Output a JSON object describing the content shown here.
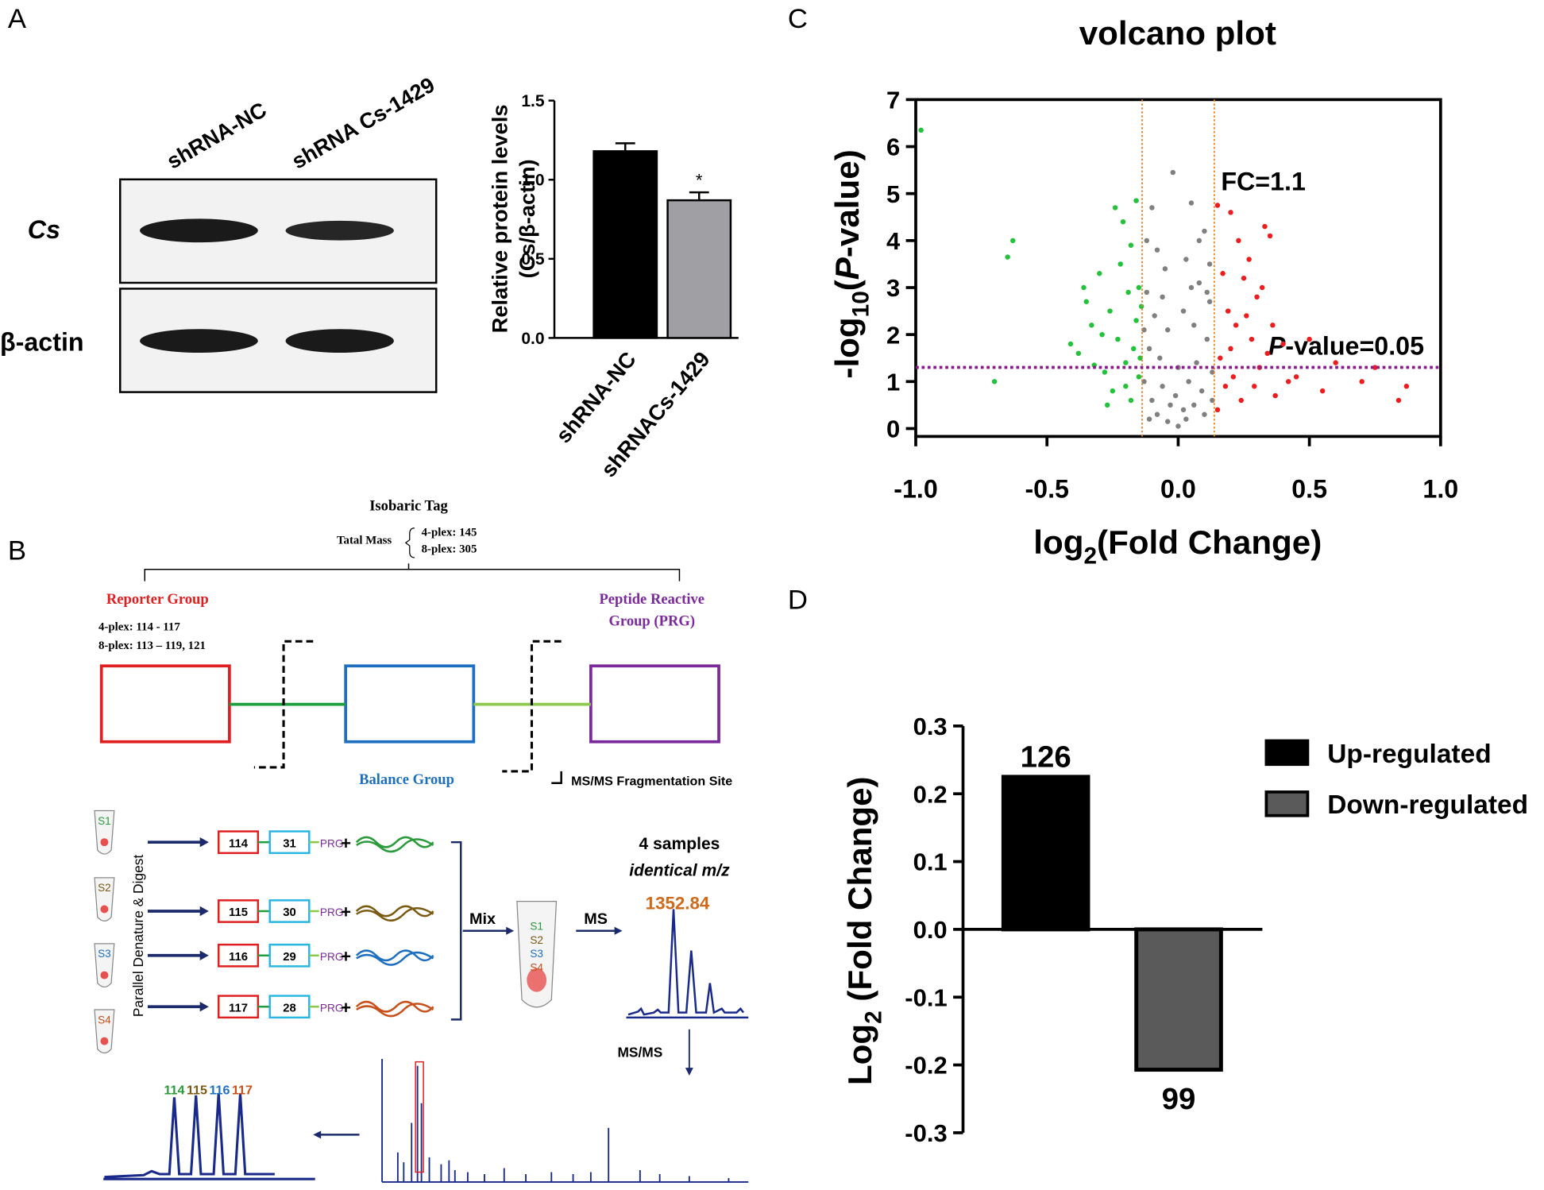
{
  "panel_labels": [
    "A",
    "B",
    "C",
    "D"
  ],
  "blot": {
    "lanes": [
      "shRNA-NC",
      "shRNA Cs-1429"
    ],
    "rows": [
      "Cs",
      "β-actin"
    ]
  },
  "diagram": {
    "title": "Isobaric Tag",
    "mass_label": "Tatal Mass",
    "mass_values": [
      "4-plex: 145",
      "8-plex: 305"
    ],
    "reporter": "Reporter Group",
    "reporter_values": [
      "4-plex: 114 - 117",
      "8-plex: 113 – 119, 121"
    ],
    "prg": [
      "Peptide Reactive",
      "Group (PRG)"
    ],
    "balance": "Balance Group",
    "fragmentation": "MS/MS Fragmentation Site",
    "digest": "Parallel Denature & Digest",
    "samples": [
      "S1",
      "S2",
      "S3",
      "S4"
    ],
    "reporter_tags": [
      "114",
      "115",
      "116",
      "117"
    ],
    "balance_tags": [
      "31",
      "30",
      "29",
      "28"
    ],
    "prg_tag": "PRG",
    "plus": "+",
    "mix": "Mix",
    "ms": "MS",
    "four_samples": "4 samples",
    "identical": "identical m/z",
    "peak": "1352.84",
    "msms": "MS/MS",
    "reporter_peaks": [
      "114",
      "115",
      "116",
      "117"
    ]
  },
  "chart_data": [
    {
      "type": "bar",
      "ylabel": [
        "Relative protein levels",
        "(Cs/β-actin)"
      ],
      "categories": [
        "shRNA-NC",
        "shRNACs-1429"
      ],
      "values": [
        1.18,
        0.87
      ],
      "errors": [
        0.05,
        0.05
      ],
      "colors": [
        "#000000",
        "#a0a0a4"
      ],
      "annotation": "*",
      "ylim": [
        0,
        1.5
      ],
      "yticks": [
        {
          "value": 0,
          "label": "0.0"
        },
        0.5,
        {
          "value": 1,
          "label": "1.0"
        },
        1.5
      ]
    },
    {
      "type": "scatter",
      "title": "volcano plot",
      "xlabel_parts": [
        "log",
        "2",
        "(Fold Change)"
      ],
      "ylabel_parts": [
        "-log",
        "10",
        "(",
        "P",
        "-value)"
      ],
      "annotations": [
        "FC=1.1"
      ],
      "pvalue_label_parts": [
        "P",
        "-value=0.05"
      ],
      "vlines": [
        -0.1375,
        0.1375
      ],
      "vline_color": "#e8862a",
      "hline": 1.301,
      "hline_color": "#8b1a8b",
      "xlim": [
        -1,
        1
      ],
      "ylim": [
        0,
        7
      ],
      "xticks": [
        {
          "value": -1,
          "label": "-1.0"
        },
        -0.5,
        {
          "value": 0,
          "label": "0.0"
        },
        0.5,
        {
          "value": 1,
          "label": "1.0"
        }
      ],
      "yticks": [
        0,
        1,
        2,
        3,
        4,
        5,
        6,
        7
      ],
      "series": [
        {
          "color": "#22c23a",
          "x": [
            -0.98,
            -0.63,
            -0.65,
            -0.7,
            -0.41,
            -0.38,
            -0.35,
            -0.33,
            -0.3,
            -0.28,
            -0.26,
            -0.25,
            -0.23,
            -0.22,
            -0.21,
            -0.2,
            -0.19,
            -0.18,
            -0.17,
            -0.16,
            -0.16,
            -0.15,
            -0.15,
            -0.27,
            -0.32,
            -0.24,
            -0.18,
            -0.36,
            -0.29,
            -0.2,
            -0.145,
            -0.14
          ],
          "y": [
            6.35,
            4.0,
            3.65,
            1.0,
            1.8,
            1.6,
            2.7,
            2.2,
            3.3,
            1.2,
            2.5,
            0.8,
            1.9,
            3.5,
            4.4,
            1.4,
            2.9,
            0.6,
            1.7,
            4.85,
            2.3,
            1.1,
            3.0,
            0.5,
            1.35,
            4.7,
            3.9,
            3.0,
            2.0,
            0.9,
            1.5,
            2.6
          ]
        },
        {
          "color": "#808080",
          "x": [
            -0.1,
            -0.02,
            0.05,
            0.1,
            -0.08,
            -0.05,
            0.03,
            0.08,
            -0.12,
            0.12,
            -0.09,
            -0.04,
            0.02,
            0.06,
            0.11,
            -0.11,
            -0.07,
            0.0,
            0.07,
            0.13,
            -0.13,
            -0.06,
            0.04,
            0.09,
            -0.1,
            -0.03,
            0.02,
            0.06,
            0.1,
            -0.08,
            -0.04,
            0.0,
            0.03,
            -0.01,
            0.12,
            -0.12,
            0.08,
            -0.06,
            0.05,
            -0.11,
            0.13,
            -0.13,
            0.11
          ],
          "y": [
            4.7,
            5.45,
            4.8,
            4.2,
            3.8,
            3.4,
            3.6,
            3.1,
            2.9,
            2.7,
            2.4,
            2.1,
            2.5,
            2.2,
            1.9,
            1.7,
            1.5,
            1.3,
            1.4,
            1.2,
            1.0,
            0.9,
            1.0,
            0.8,
            0.6,
            0.5,
            0.4,
            0.5,
            0.3,
            0.3,
            0.15,
            0.05,
            0.2,
            0.7,
            3.5,
            4.0,
            4.0,
            2.8,
            3.0,
            0.2,
            0.6,
            2.1,
            2.9
          ]
        },
        {
          "color": "#ee1c1c",
          "x": [
            0.15,
            0.2,
            0.23,
            0.35,
            0.33,
            0.27,
            0.25,
            0.3,
            0.17,
            0.19,
            0.22,
            0.28,
            0.34,
            0.4,
            0.45,
            0.5,
            0.55,
            0.6,
            0.7,
            0.75,
            0.84,
            0.87,
            0.16,
            0.18,
            0.21,
            0.24,
            0.31,
            0.37,
            0.42,
            0.15,
            0.26,
            0.32,
            0.2,
            0.29,
            0.36
          ],
          "y": [
            4.75,
            4.6,
            4.0,
            4.1,
            4.3,
            3.6,
            3.2,
            2.8,
            3.3,
            2.5,
            2.2,
            1.9,
            1.6,
            1.8,
            1.1,
            1.9,
            0.8,
            1.4,
            1.0,
            1.3,
            0.6,
            0.9,
            1.5,
            0.9,
            1.1,
            0.6,
            1.3,
            0.7,
            1.0,
            0.4,
            2.4,
            3.0,
            1.7,
            0.9,
            2.2
          ]
        }
      ]
    },
    {
      "type": "bar",
      "ylabel_parts": [
        "Log",
        "2",
        " (Fold Change)"
      ],
      "series": [
        {
          "name": "Up-regulated",
          "color": "#000000",
          "values": [
            0.225
          ],
          "count": 126
        },
        {
          "name": "Down-regulated",
          "color": "#5a5a5a",
          "values": [
            -0.207
          ],
          "count": 99
        }
      ],
      "ylim": [
        -0.3,
        0.3
      ],
      "yticks": [
        0.3,
        0.2,
        0.1,
        {
          "value": 0,
          "label": "0.0"
        },
        -0.1,
        -0.2,
        -0.3
      ]
    }
  ]
}
